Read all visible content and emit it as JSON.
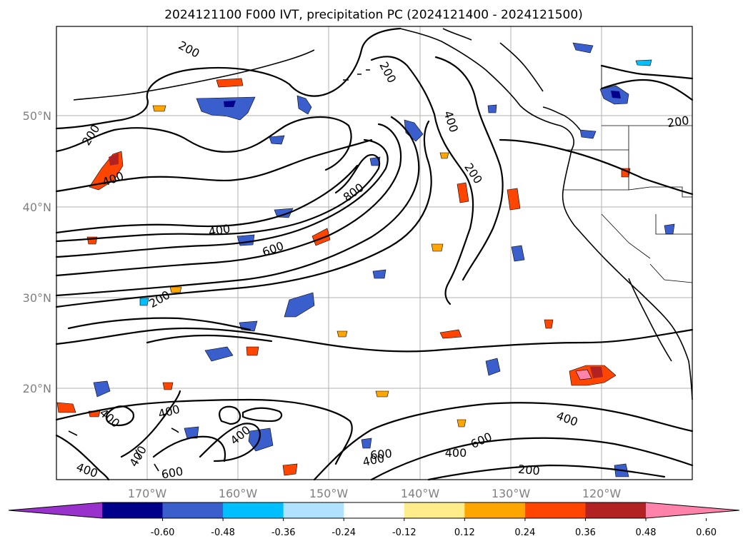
{
  "title": "2024121100 F000 IVT, precipitation PC (2024121400 - 2024121500)",
  "map": {
    "lon_labels": [
      "170°W",
      "160°W",
      "150°W",
      "140°W",
      "130°W",
      "120°W"
    ],
    "lat_labels": [
      "50°N",
      "40°N",
      "30°N",
      "20°N"
    ],
    "contour_labels": [
      "200",
      "200",
      "200",
      "200",
      "200",
      "200",
      "400",
      "400",
      "400",
      "400",
      "400",
      "400",
      "400",
      "400",
      "400",
      "400",
      "600",
      "600",
      "600",
      "600",
      "800",
      "400",
      "200"
    ]
  },
  "colorbar": {
    "ticks": [
      "-0.60",
      "-0.48",
      "-0.36",
      "-0.24",
      "-0.12",
      "0.12",
      "0.24",
      "0.36",
      "0.48",
      "0.60"
    ],
    "colors": [
      "#9932cc",
      "#00008b",
      "#3a5fcd",
      "#00bfff",
      "#b0e2ff",
      "#ffffff",
      "#ffec8b",
      "#ffa500",
      "#ff4500",
      "#b22222",
      "#ff82ab"
    ]
  }
}
